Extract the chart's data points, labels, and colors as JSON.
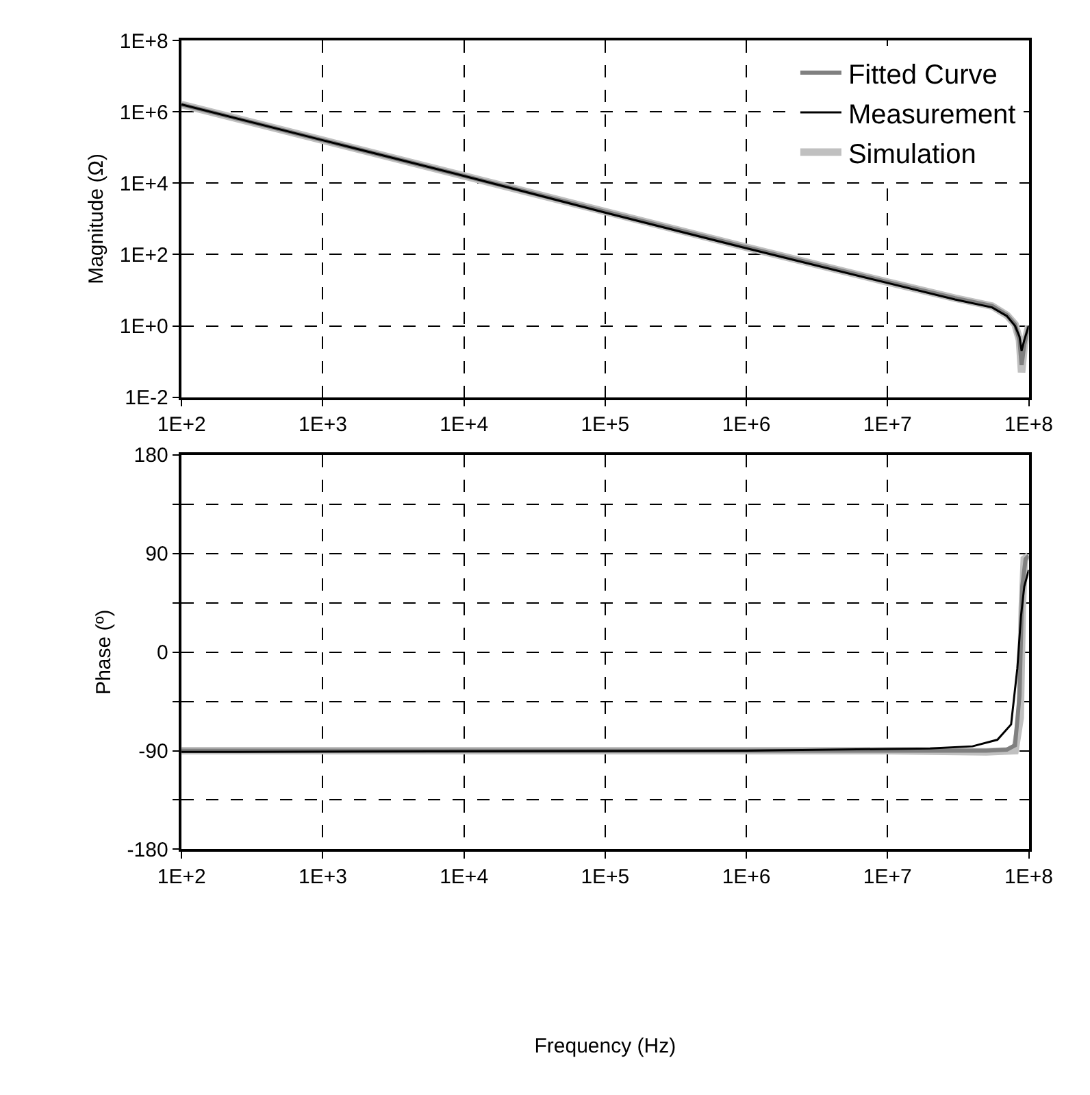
{
  "chart_data": [
    {
      "type": "line",
      "ylabel": "Magnitude (Ω)",
      "log": "xy",
      "grid": true,
      "legend": "top right",
      "line_style": "solid",
      "marker": "none",
      "xlim": [
        100,
        100000000
      ],
      "ylim": [
        0.01,
        100000000
      ],
      "xticks": [
        {
          "value": 100,
          "label": "1E+2"
        },
        {
          "value": 1000,
          "label": "1E+3"
        },
        {
          "value": 10000,
          "label": "1E+4"
        },
        {
          "value": 100000,
          "label": "1E+5"
        },
        {
          "value": 1000000,
          "label": "1E+6"
        },
        {
          "value": 10000000,
          "label": "1E+7"
        },
        {
          "value": 100000000,
          "label": "1E+8"
        }
      ],
      "yticks": [
        {
          "value": 0.01,
          "label": "1E-2"
        },
        {
          "value": 1,
          "label": "1E+0"
        },
        {
          "value": 100,
          "label": "1E+2"
        },
        {
          "value": 10000,
          "label": "1E+4"
        },
        {
          "value": 1000000,
          "label": "1E+6"
        },
        {
          "value": 100000000,
          "label": "1E+8"
        }
      ],
      "series": [
        {
          "name": "Fitted Curve",
          "color": "#808080",
          "x": [
            100,
            1000,
            10000,
            100000,
            1000000,
            10000000,
            30000000,
            55000000,
            70000000,
            80000000,
            86000000,
            89000000,
            93000000,
            100000000
          ],
          "values": [
            1600000,
            160000,
            16000,
            1600,
            160,
            17,
            6,
            3.6,
            2,
            1.1,
            0.4,
            0.08,
            0.3,
            1
          ]
        },
        {
          "name": "Measurement",
          "color": "#000000",
          "x": [
            100,
            1000,
            10000,
            100000,
            1000000,
            10000000,
            30000000,
            55000000,
            70000000,
            80000000,
            86000000,
            89000000,
            93000000,
            100000000
          ],
          "values": [
            1600000,
            160000,
            16000,
            1500,
            150,
            16,
            5.5,
            3.3,
            1.9,
            1,
            0.5,
            0.2,
            0.4,
            1
          ]
        },
        {
          "name": "Simulation",
          "color": "#c0c0c0",
          "x": [
            100,
            1000,
            10000,
            100000,
            1000000,
            10000000,
            30000000,
            55000000,
            70000000,
            80000000,
            86000000,
            89000000,
            93000000,
            100000000
          ],
          "values": [
            1600000,
            160000,
            16000,
            1600,
            160,
            17,
            6,
            3.6,
            2,
            1.1,
            0.4,
            0.05,
            0.3,
            1
          ]
        }
      ]
    },
    {
      "type": "line",
      "ylabel": "Phase (º)",
      "xlabel": "Frequency (Hz)",
      "log": "x",
      "grid": true,
      "line_style": "solid",
      "marker": "none",
      "xlim": [
        100,
        100000000
      ],
      "ylim": [
        -180,
        180
      ],
      "xticks": [
        {
          "value": 100,
          "label": "1E+2"
        },
        {
          "value": 1000,
          "label": "1E+3"
        },
        {
          "value": 10000,
          "label": "1E+4"
        },
        {
          "value": 100000,
          "label": "1E+5"
        },
        {
          "value": 1000000,
          "label": "1E+6"
        },
        {
          "value": 10000000,
          "label": "1E+7"
        },
        {
          "value": 100000000,
          "label": "1E+8"
        }
      ],
      "yticks": [
        -180,
        {
          "value": -135,
          "label": null
        },
        -90,
        {
          "value": -45,
          "label": null
        },
        0,
        {
          "value": 45,
          "label": null
        },
        90,
        {
          "value": 135,
          "label": null
        },
        180
      ],
      "series": [
        {
          "color": "#808080",
          "x": [
            100,
            1000000,
            10000000,
            50000000,
            70000000,
            80000000,
            86000000,
            90000000,
            95000000,
            100000000
          ],
          "values": [
            -90,
            -90,
            -90,
            -90,
            -89,
            -85,
            -40,
            60,
            85,
            88
          ]
        },
        {
          "color": "#000000",
          "x": [
            100,
            250,
            1000000,
            20000000,
            40000000,
            60000000,
            75000000,
            83000000,
            88000000,
            93000000,
            100000000
          ],
          "values": [
            -91,
            -91,
            -90,
            -88,
            -86,
            -80,
            -66,
            -15,
            32,
            60,
            75
          ]
        },
        {
          "color": "#c0c0c0",
          "x": [
            100,
            1000000,
            10000000,
            50000000,
            80000000,
            87000000,
            90000000,
            93000000,
            100000000
          ],
          "values": [
            -90,
            -90,
            -90,
            -91,
            -90,
            -60,
            40,
            85,
            88
          ]
        }
      ]
    }
  ]
}
